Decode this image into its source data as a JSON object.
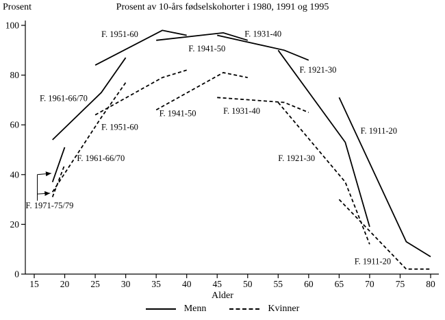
{
  "chart_data": {
    "type": "line",
    "title": "Prosent av 10-års fødselskohorter i 1980, 1991 og 1995",
    "xlabel": "Alder",
    "ylabel": "Prosent",
    "xlim": [
      15,
      80
    ],
    "ylim": [
      0,
      100
    ],
    "x_ticks": [
      15,
      20,
      25,
      30,
      35,
      40,
      45,
      50,
      55,
      60,
      65,
      70,
      75,
      80
    ],
    "y_ticks": [
      0,
      20,
      40,
      60,
      80,
      100
    ],
    "grid": false,
    "line_color": "#000000",
    "background_color": "#ffffff",
    "legend_position": "bottom",
    "legend": [
      {
        "label": "Menn",
        "style": "solid"
      },
      {
        "label": "Kvinner",
        "style": "dashed"
      }
    ],
    "series": [
      {
        "id": "menn-1961-66-70",
        "group": "Menn",
        "cohort": "F. 1961-66/70",
        "style": "solid",
        "label": "F. 1961-66/70",
        "label_pos": [
          15.9,
          69.5
        ],
        "points": [
          [
            18,
            54
          ],
          [
            26,
            73
          ],
          [
            30,
            87
          ]
        ]
      },
      {
        "id": "menn-1951-60",
        "group": "Menn",
        "cohort": "F. 1951-60",
        "style": "solid",
        "label": "F. 1951-60",
        "label_pos": [
          26,
          95.3
        ],
        "points": [
          [
            25,
            84
          ],
          [
            36,
            98
          ],
          [
            40,
            96
          ]
        ]
      },
      {
        "id": "menn-1941-50",
        "group": "Menn",
        "cohort": "F. 1941-50",
        "style": "solid",
        "label": "F. 1941-50",
        "label_pos": [
          40.3,
          89.5
        ],
        "points": [
          [
            35,
            94
          ],
          [
            46,
            97
          ],
          [
            50,
            94
          ]
        ]
      },
      {
        "id": "menn-1931-40",
        "group": "Menn",
        "cohort": "F. 1931-40",
        "style": "solid",
        "label": "F. 1931-40",
        "label_pos": [
          49.5,
          95.5
        ],
        "points": [
          [
            45,
            96
          ],
          [
            56,
            90
          ],
          [
            60,
            86
          ]
        ]
      },
      {
        "id": "menn-1921-30",
        "group": "Menn",
        "cohort": "F. 1921-30",
        "style": "solid",
        "label": "F. 1921-30",
        "label_pos": [
          58.5,
          81
        ],
        "points": [
          [
            55,
            90
          ],
          [
            66,
            53
          ],
          [
            70,
            19
          ]
        ]
      },
      {
        "id": "menn-1911-20",
        "group": "Menn",
        "cohort": "F. 1911-20",
        "style": "solid",
        "label": "F. 1911-20",
        "label_pos": [
          68.5,
          56.5
        ],
        "points": [
          [
            65,
            71
          ],
          [
            76,
            13
          ],
          [
            80,
            7
          ]
        ]
      },
      {
        "id": "menn-1971-75-79",
        "group": "Menn",
        "cohort": "F. 1971-75/79",
        "style": "solid",
        "label": "",
        "label_pos": null,
        "points": [
          [
            18,
            37
          ],
          [
            20,
            51
          ]
        ]
      },
      {
        "id": "kvinner-1961-66-70",
        "group": "Kvinner",
        "cohort": "F. 1961-66/70",
        "style": "dashed",
        "label": "F. 1961-66/70",
        "label_pos": [
          22,
          45.5
        ],
        "points": [
          [
            18,
            33
          ],
          [
            26,
            63
          ],
          [
            30,
            77
          ]
        ]
      },
      {
        "id": "kvinner-1951-60",
        "group": "Kvinner",
        "cohort": "F. 1951-60",
        "style": "dashed",
        "label": "F. 1951-60",
        "label_pos": [
          26,
          58
        ],
        "points": [
          [
            25,
            64
          ],
          [
            36,
            79
          ],
          [
            40,
            82
          ]
        ]
      },
      {
        "id": "kvinner-1941-50",
        "group": "Kvinner",
        "cohort": "F. 1941-50",
        "style": "dashed",
        "label": "F. 1941-50",
        "label_pos": [
          35.5,
          63.5
        ],
        "points": [
          [
            35,
            66
          ],
          [
            46,
            81
          ],
          [
            50,
            79
          ]
        ]
      },
      {
        "id": "kvinner-1931-40",
        "group": "Kvinner",
        "cohort": "F. 1931-40",
        "style": "dashed",
        "label": "F. 1931-40",
        "label_pos": [
          46,
          64.5
        ],
        "points": [
          [
            45,
            71
          ],
          [
            56,
            69
          ],
          [
            60,
            65
          ]
        ]
      },
      {
        "id": "kvinner-1921-30",
        "group": "Kvinner",
        "cohort": "F. 1921-30",
        "style": "dashed",
        "label": "F. 1921-30",
        "label_pos": [
          55,
          45.5
        ],
        "points": [
          [
            55,
            69
          ],
          [
            66,
            37
          ],
          [
            70,
            12
          ]
        ]
      },
      {
        "id": "kvinner-1911-20",
        "group": "Kvinner",
        "cohort": "F. 1911-20",
        "style": "dashed",
        "label": "F. 1911-20",
        "label_pos": [
          67.5,
          4
        ],
        "points": [
          [
            65,
            30
          ],
          [
            76,
            2
          ],
          [
            80,
            2
          ]
        ]
      },
      {
        "id": "kvinner-1971-75-79",
        "group": "Kvinner",
        "cohort": "F. 1971-75/79",
        "style": "dashed",
        "label": "",
        "label_pos": null,
        "points": [
          [
            18,
            31
          ],
          [
            20,
            44
          ]
        ]
      }
    ],
    "annotation": {
      "text": "F. 1971-75/79",
      "text_pos": [
        13.6,
        26.5
      ],
      "connector": [
        [
          15.5,
          29.5
        ],
        [
          15.5,
          40
        ]
      ],
      "arrows": [
        {
          "from": [
            15.5,
            40
          ],
          "to": [
            17.8,
            40.5
          ]
        },
        {
          "from": [
            15.5,
            32.2
          ],
          "to": [
            17.6,
            32.5
          ]
        }
      ]
    }
  }
}
